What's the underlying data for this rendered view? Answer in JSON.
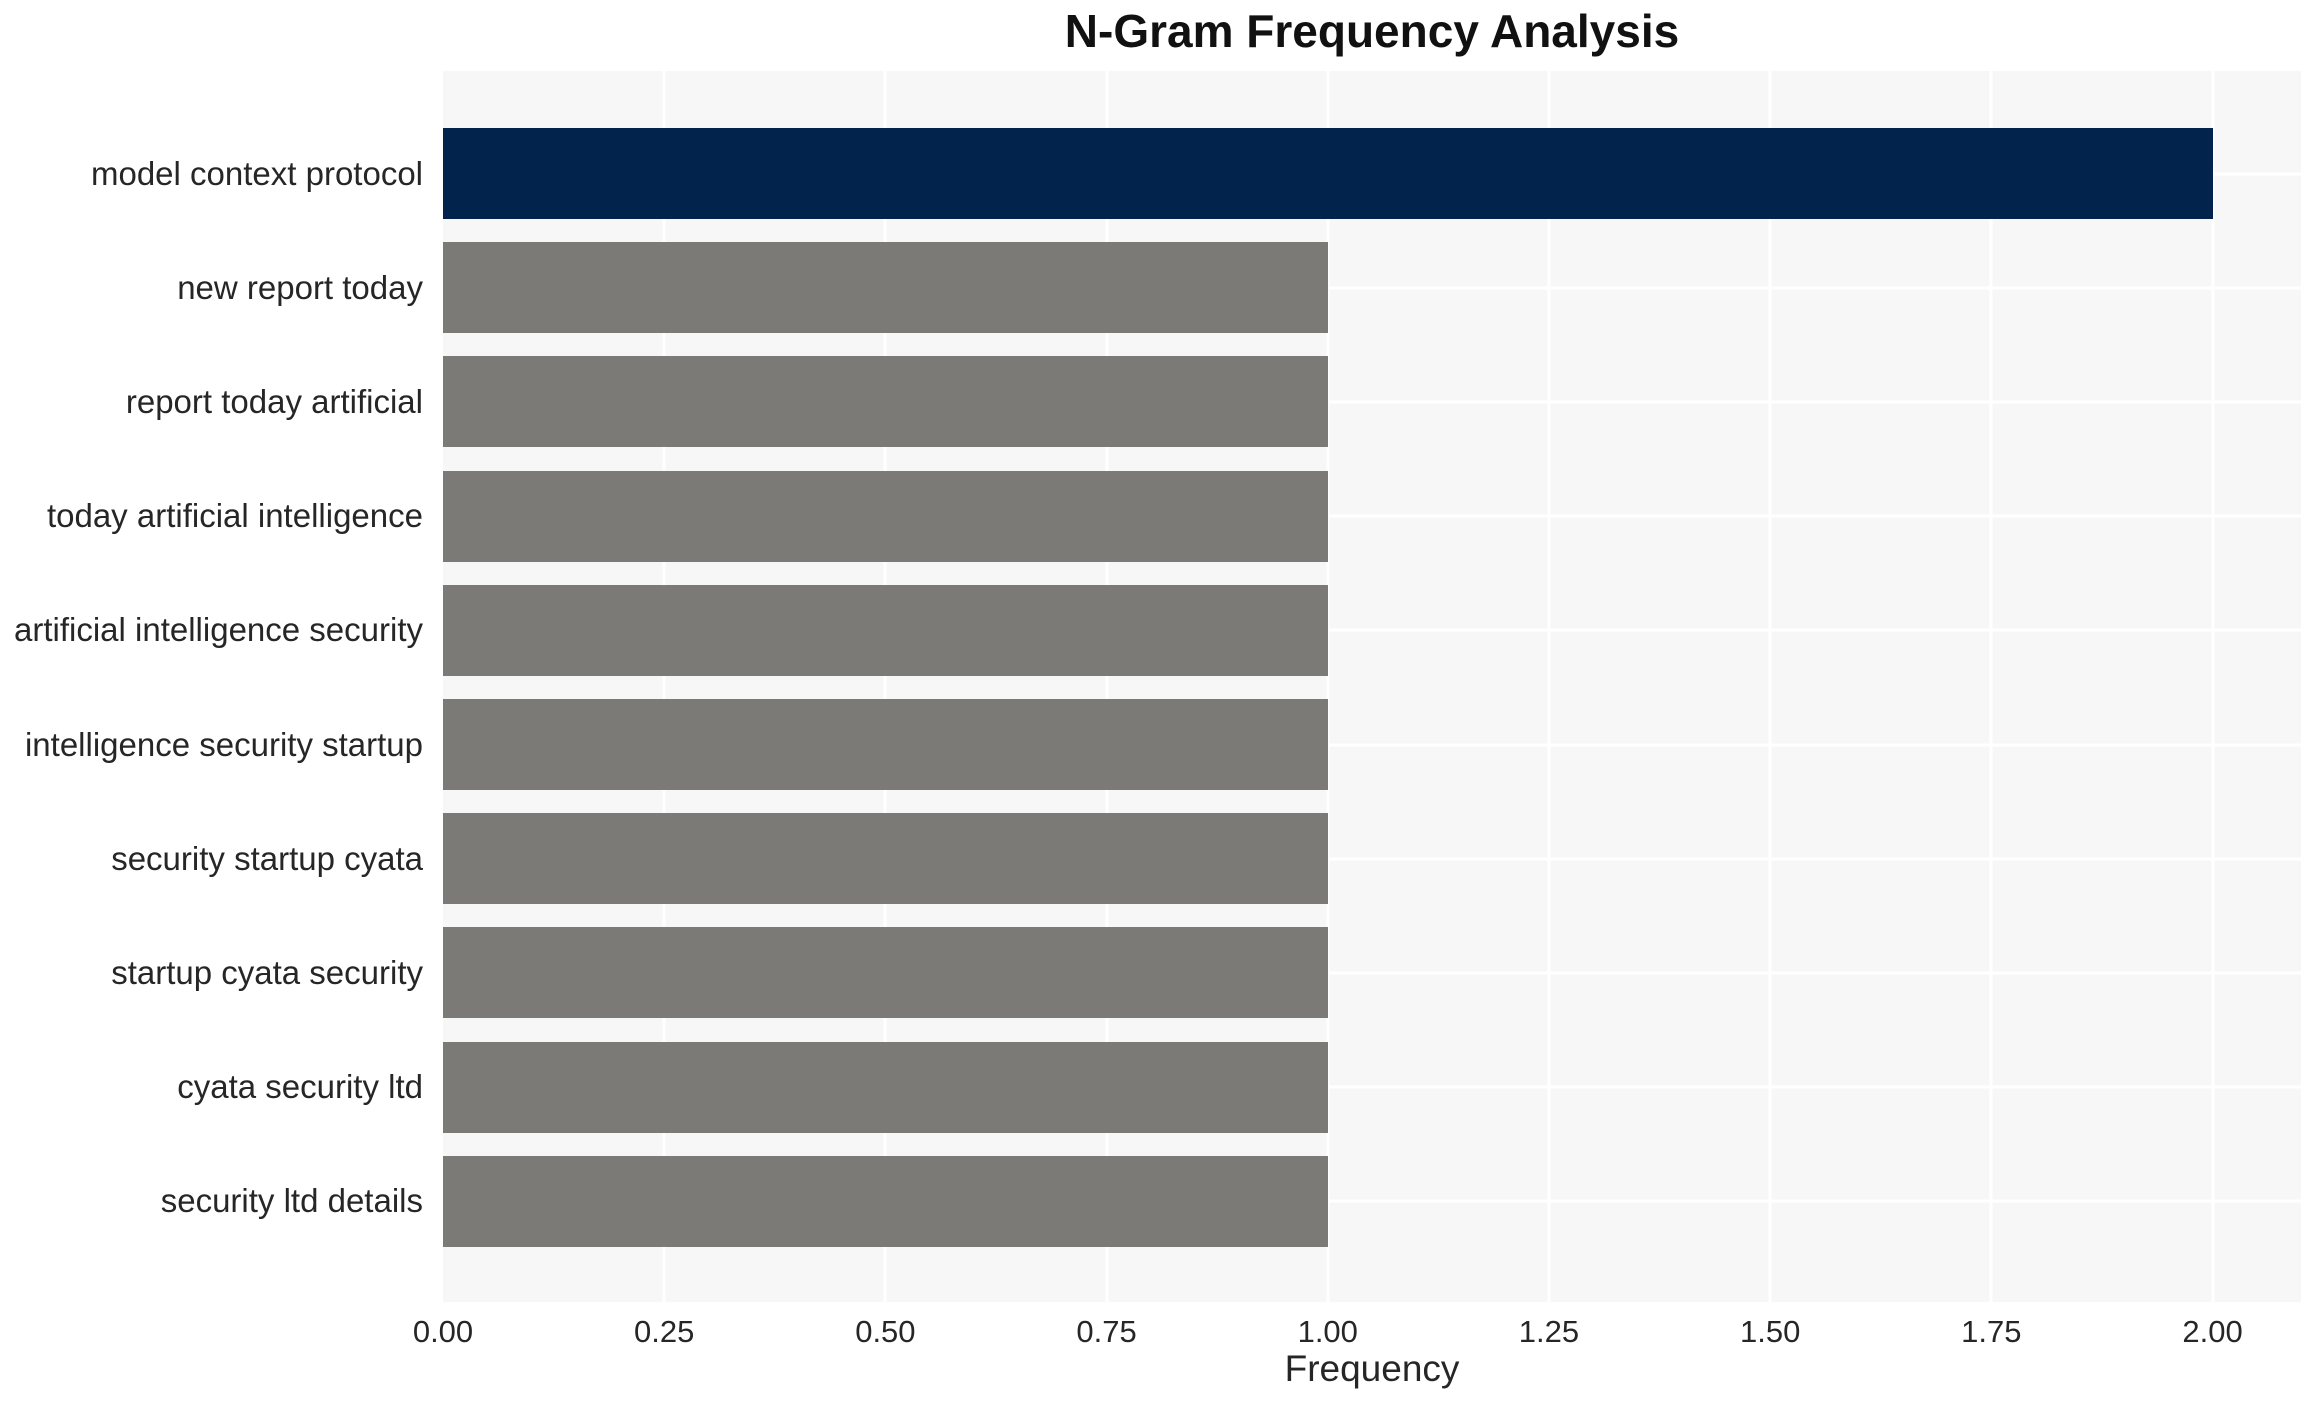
{
  "chart_data": {
    "type": "bar",
    "orientation": "horizontal",
    "title": "N-Gram Frequency Analysis",
    "xlabel": "Frequency",
    "ylabel": "",
    "categories": [
      "model context protocol",
      "new report today",
      "report today artificial",
      "today artificial intelligence",
      "artificial intelligence security",
      "intelligence security startup",
      "security startup cyata",
      "startup cyata security",
      "cyata security ltd",
      "security ltd details"
    ],
    "values": [
      2,
      1,
      1,
      1,
      1,
      1,
      1,
      1,
      1,
      1
    ],
    "bar_colors": [
      "#02234c",
      "#7b7a76",
      "#7b7a76",
      "#7b7a76",
      "#7b7a76",
      "#7b7a76",
      "#7b7a76",
      "#7b7a76",
      "#7b7a76",
      "#7b7a76"
    ],
    "x_ticks": [
      "0.00",
      "0.25",
      "0.50",
      "0.75",
      "1.00",
      "1.25",
      "1.50",
      "1.75",
      "2.00"
    ],
    "x_tick_values": [
      0,
      0.25,
      0.5,
      0.75,
      1.0,
      1.25,
      1.5,
      1.75,
      2.0
    ],
    "xlim": [
      0,
      2.1
    ],
    "grid": true,
    "legend": false,
    "plot_background": "#f8f7f7",
    "grid_color": "#ffffff",
    "figure_background": "#ffffff",
    "text_color": "#262626",
    "title_color": "#111111"
  }
}
